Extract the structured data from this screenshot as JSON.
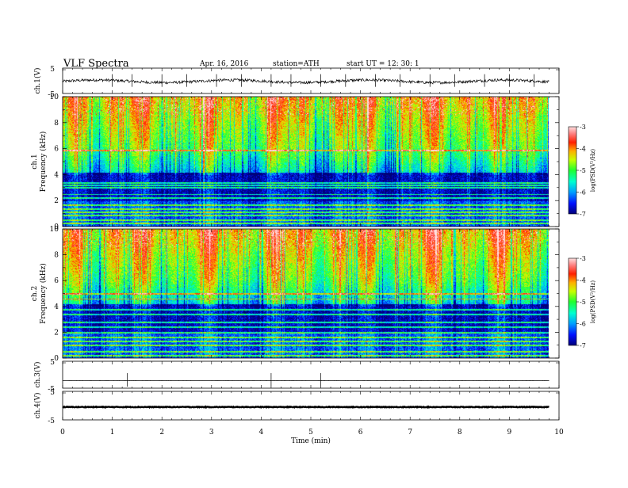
{
  "header": {
    "title": "VLF  Spectra",
    "date": "Apr. 16, 2016",
    "station": "station=ATH",
    "start": "start  UT  =    12: 30: 1"
  },
  "chart_data": [
    {
      "type": "line",
      "name": "ch1-waveform",
      "ylabel": "ch.1(V)",
      "ylim": [
        -5,
        5
      ],
      "yticks": [
        "5",
        "-5"
      ],
      "mean": -0.2,
      "spike_minutes": [
        1.0,
        1.4,
        2.0,
        2.5,
        3.1,
        3.6,
        4.2,
        4.6,
        5.2,
        5.7,
        6.3,
        6.8,
        7.4,
        7.9,
        8.5,
        9.0,
        9.5
      ]
    },
    {
      "type": "heatmap",
      "name": "ch1-spectrogram",
      "ylabel": "ch.1",
      "ylabel2": "Frequency  (kHz)",
      "ylim": [
        0,
        10
      ],
      "yticks": [
        "0",
        "2",
        "4",
        "6",
        "8",
        "10"
      ],
      "xlim_min": [
        0,
        9.8
      ],
      "bands_khz": [
        0.3,
        0.5,
        0.9,
        1.1,
        1.4,
        1.7,
        2.2,
        2.5,
        3.0,
        3.2,
        3.4,
        5.9
      ],
      "colorbar": {
        "label": "log(PSD(V²/Hz)",
        "ticks": [
          "-3",
          "-4",
          "-5",
          "-6",
          "-7"
        ],
        "range": [
          -7,
          -3
        ]
      }
    },
    {
      "type": "heatmap",
      "name": "ch2-spectrogram",
      "ylabel": "ch.2",
      "ylabel2": "Frequency  (kHz)",
      "ylim": [
        0,
        10
      ],
      "yticks": [
        "0",
        "2",
        "4",
        "6",
        "8",
        "10"
      ],
      "xlim_min": [
        0,
        9.8
      ],
      "bands_khz": [
        0.2,
        0.5,
        1.0,
        1.3,
        1.6,
        2.0,
        2.4,
        2.8,
        3.4,
        3.8,
        4.6,
        5.0
      ],
      "colorbar": {
        "label": "log(PSD(V²/Hz)",
        "ticks": [
          "-3",
          "-4",
          "-5",
          "-6",
          "-7"
        ],
        "range": [
          -7,
          -3
        ]
      }
    },
    {
      "type": "line",
      "name": "ch3-waveform",
      "ylabel": "ch.3(V)",
      "ylim": [
        -5,
        5
      ],
      "yticks": [
        "5",
        "-5"
      ],
      "mean": -2.2,
      "spike_minutes": [
        1.3,
        4.2,
        5.2
      ]
    },
    {
      "type": "line",
      "name": "ch4-waveform",
      "ylabel": "ch.4(V)",
      "ylim": [
        -5,
        5
      ],
      "yticks": [
        "5",
        "-5"
      ],
      "mean": -0.5,
      "spike_minutes": []
    }
  ],
  "xaxis": {
    "label": "Time  (min)",
    "ticks": [
      "0",
      "1",
      "2",
      "3",
      "4",
      "5",
      "6",
      "7",
      "8",
      "9",
      "10"
    ],
    "xlim": [
      0,
      10
    ]
  }
}
